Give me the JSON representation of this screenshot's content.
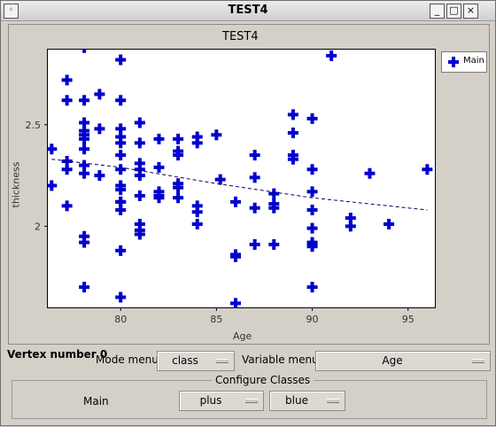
{
  "window": {
    "title": "TEST4"
  },
  "plot": {
    "title": "TEST4",
    "legend": "Main",
    "xlabel": "Age",
    "ylabel": "thickness"
  },
  "controls": {
    "vertex_label": "Vertex number 0",
    "mode_label": "Mode menu",
    "mode_value": "class",
    "variable_label": "Variable menu",
    "variable_value": "Age"
  },
  "configure": {
    "title": "Configure Classes",
    "class_name": "Main",
    "symbol": "plus",
    "color": "blue"
  },
  "chart_data": {
    "type": "scatter",
    "title": "TEST4",
    "xlabel": "Age",
    "ylabel": "thickness",
    "xlim": [
      76.2,
      96.4
    ],
    "ylim": [
      1.6,
      2.87
    ],
    "xticks": [
      80,
      85,
      90,
      95
    ],
    "yticks": [
      2,
      2.5
    ],
    "grid": false,
    "legend": "top-right",
    "point_color": "#0000cc",
    "series": [
      {
        "name": "Main",
        "x": [
          76.4,
          76.4,
          77.2,
          77.2,
          77.2,
          77.2,
          77.2,
          78.1,
          78.1,
          78.1,
          78.1,
          78.1,
          78.1,
          78.1,
          78.1,
          78.1,
          78.1,
          78.1,
          78.1,
          78.9,
          78.9,
          78.9,
          80.0,
          80.0,
          80.0,
          80.0,
          80.0,
          80.0,
          80.0,
          80.0,
          80.0,
          80.0,
          80.0,
          80.0,
          80.0,
          80.0,
          81.0,
          81.0,
          81.0,
          81.0,
          81.0,
          81.0,
          81.0,
          81.0,
          81.0,
          82.0,
          82.0,
          82.0,
          82.0,
          82.0,
          83.0,
          83.0,
          83.0,
          83.0,
          83.0,
          83.0,
          84.0,
          84.0,
          84.0,
          84.0,
          84.0,
          85.0,
          85.2,
          86.0,
          86.0,
          86.0,
          86.0,
          87.0,
          87.0,
          87.0,
          87.0,
          88.0,
          88.0,
          88.0,
          88.0,
          89.0,
          89.0,
          89.0,
          89.0,
          90.0,
          90.0,
          90.0,
          90.0,
          90.0,
          90.0,
          90.0,
          90.0,
          90.0,
          91.0,
          92.0,
          92.0,
          93.0,
          94.0,
          96.0
        ],
        "y": [
          2.38,
          2.2,
          2.72,
          2.62,
          2.32,
          2.28,
          2.1,
          2.62,
          2.51,
          2.47,
          2.45,
          2.43,
          2.38,
          2.3,
          2.26,
          1.95,
          1.92,
          1.7,
          2.88,
          2.65,
          2.48,
          2.25,
          2.82,
          2.62,
          2.48,
          2.44,
          2.41,
          2.35,
          2.28,
          2.2,
          2.18,
          2.12,
          2.08,
          1.88,
          1.65,
          2.12,
          2.51,
          2.41,
          2.31,
          2.28,
          2.25,
          2.15,
          2.01,
          1.98,
          1.96,
          2.43,
          2.29,
          2.17,
          2.15,
          2.14,
          2.43,
          2.37,
          2.35,
          2.21,
          2.19,
          2.14,
          2.44,
          2.41,
          2.1,
          2.07,
          2.01,
          2.45,
          2.23,
          2.12,
          1.86,
          1.85,
          1.62,
          2.35,
          2.24,
          2.09,
          1.91,
          2.16,
          2.11,
          2.09,
          1.91,
          2.55,
          2.46,
          2.35,
          2.33,
          2.53,
          2.28,
          2.17,
          2.08,
          1.99,
          1.92,
          1.91,
          1.9,
          1.7,
          2.84,
          2.04,
          2.0,
          2.26,
          2.01,
          2.28
        ]
      },
      {
        "name": "trend",
        "x": [
          76.4,
          80,
          85,
          90,
          96
        ],
        "y": [
          2.33,
          2.29,
          2.21,
          2.14,
          2.08
        ]
      }
    ]
  }
}
